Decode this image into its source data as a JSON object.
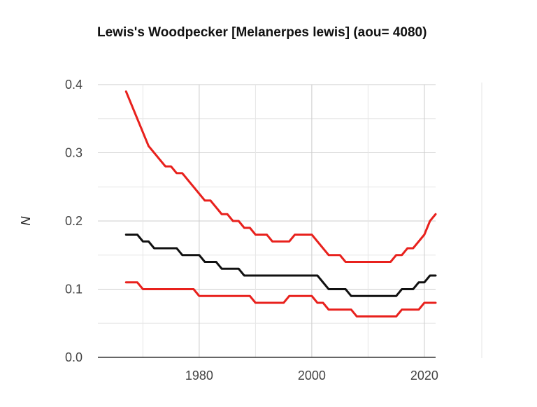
{
  "chart_data": {
    "type": "line",
    "title": "Lewis's Woodpecker [Melanerpes lewis] (aou= 4080)",
    "xlabel": "",
    "ylabel": "N",
    "xlim": [
      1962,
      2022
    ],
    "ylim": [
      0,
      0.4
    ],
    "xticks": [
      1980,
      2000,
      2020
    ],
    "yticks": [
      0.0,
      0.1,
      0.2,
      0.3,
      0.4
    ],
    "ytick_labels": [
      "0.0",
      "0.1",
      "0.2",
      "0.3",
      "0.4"
    ],
    "xtick_labels": [
      "1980",
      "2000",
      "2020"
    ],
    "grid": true,
    "series": [
      {
        "color": "#e8211d",
        "x": [
          1967,
          1968,
          1969,
          1970,
          1971,
          1972,
          1973,
          1974,
          1975,
          1976,
          1977,
          1978,
          1979,
          1980,
          1981,
          1982,
          1983,
          1984,
          1985,
          1986,
          1987,
          1988,
          1989,
          1990,
          1991,
          1992,
          1993,
          1994,
          1995,
          1996,
          1997,
          1998,
          1999,
          2000,
          2001,
          2002,
          2003,
          2004,
          2005,
          2006,
          2007,
          2008,
          2009,
          2010,
          2011,
          2012,
          2013,
          2014,
          2015,
          2016,
          2017,
          2018,
          2019,
          2020,
          2021,
          2022
        ],
        "values": [
          0.39,
          0.37,
          0.35,
          0.33,
          0.31,
          0.3,
          0.29,
          0.28,
          0.28,
          0.27,
          0.27,
          0.26,
          0.25,
          0.24,
          0.23,
          0.23,
          0.22,
          0.21,
          0.21,
          0.2,
          0.2,
          0.19,
          0.19,
          0.18,
          0.18,
          0.18,
          0.17,
          0.17,
          0.17,
          0.17,
          0.18,
          0.18,
          0.18,
          0.18,
          0.17,
          0.16,
          0.15,
          0.15,
          0.15,
          0.14,
          0.14,
          0.14,
          0.14,
          0.14,
          0.14,
          0.14,
          0.14,
          0.14,
          0.15,
          0.15,
          0.16,
          0.16,
          0.17,
          0.18,
          0.2,
          0.21
        ]
      },
      {
        "color": "#111111",
        "x": [
          1967,
          1968,
          1969,
          1970,
          1971,
          1972,
          1973,
          1974,
          1975,
          1976,
          1977,
          1978,
          1979,
          1980,
          1981,
          1982,
          1983,
          1984,
          1985,
          1986,
          1987,
          1988,
          1989,
          1990,
          1991,
          1992,
          1993,
          1994,
          1995,
          1996,
          1997,
          1998,
          1999,
          2000,
          2001,
          2002,
          2003,
          2004,
          2005,
          2006,
          2007,
          2008,
          2009,
          2010,
          2011,
          2012,
          2013,
          2014,
          2015,
          2016,
          2017,
          2018,
          2019,
          2020,
          2021,
          2022
        ],
        "values": [
          0.18,
          0.18,
          0.18,
          0.17,
          0.17,
          0.16,
          0.16,
          0.16,
          0.16,
          0.16,
          0.15,
          0.15,
          0.15,
          0.15,
          0.14,
          0.14,
          0.14,
          0.13,
          0.13,
          0.13,
          0.13,
          0.12,
          0.12,
          0.12,
          0.12,
          0.12,
          0.12,
          0.12,
          0.12,
          0.12,
          0.12,
          0.12,
          0.12,
          0.12,
          0.12,
          0.11,
          0.1,
          0.1,
          0.1,
          0.1,
          0.09,
          0.09,
          0.09,
          0.09,
          0.09,
          0.09,
          0.09,
          0.09,
          0.09,
          0.1,
          0.1,
          0.1,
          0.11,
          0.11,
          0.12,
          0.12
        ]
      },
      {
        "color": "#e8211d",
        "x": [
          1967,
          1968,
          1969,
          1970,
          1971,
          1972,
          1973,
          1974,
          1975,
          1976,
          1977,
          1978,
          1979,
          1980,
          1981,
          1982,
          1983,
          1984,
          1985,
          1986,
          1987,
          1988,
          1989,
          1990,
          1991,
          1992,
          1993,
          1994,
          1995,
          1996,
          1997,
          1998,
          1999,
          2000,
          2001,
          2002,
          2003,
          2004,
          2005,
          2006,
          2007,
          2008,
          2009,
          2010,
          2011,
          2012,
          2013,
          2014,
          2015,
          2016,
          2017,
          2018,
          2019,
          2020,
          2021,
          2022
        ],
        "values": [
          0.11,
          0.11,
          0.11,
          0.1,
          0.1,
          0.1,
          0.1,
          0.1,
          0.1,
          0.1,
          0.1,
          0.1,
          0.1,
          0.09,
          0.09,
          0.09,
          0.09,
          0.09,
          0.09,
          0.09,
          0.09,
          0.09,
          0.09,
          0.08,
          0.08,
          0.08,
          0.08,
          0.08,
          0.08,
          0.09,
          0.09,
          0.09,
          0.09,
          0.09,
          0.08,
          0.08,
          0.07,
          0.07,
          0.07,
          0.07,
          0.07,
          0.06,
          0.06,
          0.06,
          0.06,
          0.06,
          0.06,
          0.06,
          0.06,
          0.07,
          0.07,
          0.07,
          0.07,
          0.08,
          0.08,
          0.08
        ]
      }
    ]
  }
}
